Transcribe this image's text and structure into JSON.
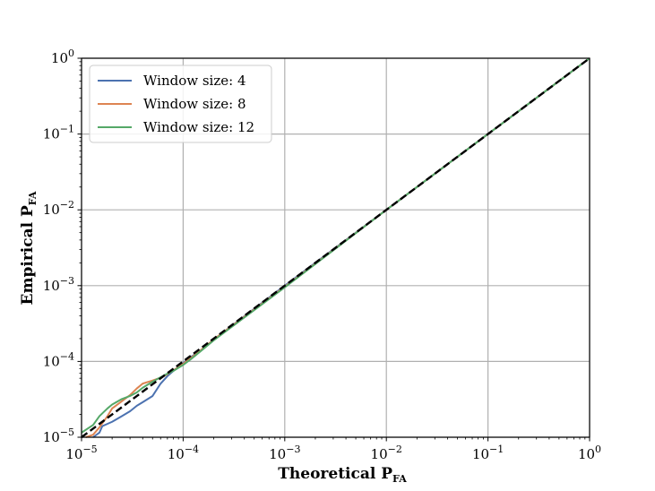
{
  "chart_data": {
    "type": "line",
    "xscale": "log",
    "yscale": "log",
    "xlim": [
      1e-05,
      1
    ],
    "ylim": [
      1e-05,
      1
    ],
    "grid": true,
    "legend_position": "top-left",
    "xlabel": {
      "base": "Theoretical P",
      "sub": "FA"
    },
    "ylabel": {
      "base": "Empirical P",
      "sub": "FA"
    },
    "tick_exponents": [
      -5,
      -4,
      -3,
      -2,
      -1,
      0
    ],
    "tick_labels": [
      "10",
      "10",
      "10",
      "10",
      "10",
      "10"
    ],
    "tick_sups": [
      "−5",
      "−4",
      "−3",
      "−2",
      "−1",
      "0"
    ],
    "series": [
      {
        "name": "Window size: 4",
        "color": "#4c72b0",
        "x": [
          1.3e-05,
          1.5e-05,
          1.6e-05,
          2e-05,
          2.5e-05,
          3e-05,
          3.5e-05,
          4e-05,
          5e-05,
          6e-05,
          7e-05,
          8e-05,
          0.0001,
          0.00012,
          0.00015,
          0.0002,
          0.001,
          0.01,
          0.1,
          1
        ],
        "y": [
          1e-05,
          1.15e-05,
          1.4e-05,
          1.6e-05,
          1.9e-05,
          2.2e-05,
          2.6e-05,
          2.9e-05,
          3.5e-05,
          5.1e-05,
          6.4e-05,
          7.5e-05,
          9.5e-05,
          0.000115,
          0.00014,
          0.000195,
          0.001,
          0.01,
          0.1,
          1
        ]
      },
      {
        "name": "Window size: 8",
        "color": "#dd8452",
        "x": [
          1.1e-05,
          1.3e-05,
          1.5e-05,
          1.8e-05,
          2e-05,
          2.5e-05,
          3e-05,
          3.5e-05,
          4e-05,
          5e-05,
          6e-05,
          7e-05,
          8e-05,
          0.0001,
          0.00012,
          0.00015,
          0.0002,
          0.001,
          0.01,
          0.1,
          1
        ],
        "y": [
          1e-05,
          1.08e-05,
          1.35e-05,
          1.9e-05,
          2.4e-05,
          3e-05,
          3.6e-05,
          4.4e-05,
          5.1e-05,
          5.6e-05,
          6.1e-05,
          6.8e-05,
          7.6e-05,
          9.3e-05,
          0.000112,
          0.000142,
          0.000195,
          0.00097,
          0.01,
          0.1,
          1
        ]
      },
      {
        "name": "Window size: 12",
        "color": "#55a868",
        "x": [
          1e-05,
          1.3e-05,
          1.5e-05,
          1.8e-05,
          2e-05,
          2.5e-05,
          3e-05,
          3.5e-05,
          4e-05,
          5e-05,
          6e-05,
          7e-05,
          8e-05,
          0.0001,
          0.00012,
          0.00015,
          0.0002,
          0.001,
          0.01,
          0.1,
          1
        ],
        "y": [
          1.15e-05,
          1.45e-05,
          1.9e-05,
          2.4e-05,
          2.7e-05,
          3.2e-05,
          3.5e-05,
          3.9e-05,
          4.5e-05,
          5.4e-05,
          6.2e-05,
          6.9e-05,
          7.5e-05,
          9e-05,
          0.000108,
          0.000138,
          0.00019,
          0.00095,
          0.01,
          0.1,
          1
        ]
      }
    ],
    "reference_line": {
      "x": [
        1e-05,
        1
      ],
      "y": [
        1e-05,
        1
      ],
      "color": "#000000",
      "style": "dashed"
    }
  }
}
